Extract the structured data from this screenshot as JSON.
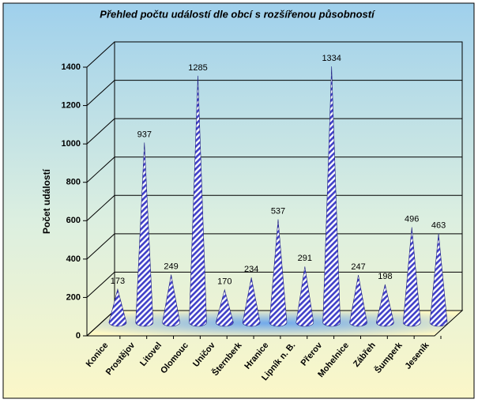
{
  "chart_data": {
    "type": "cone",
    "title": "Přehled počtu událostí dle obcí s rozšířenou působností",
    "y_label": "Počet událostí",
    "categories": [
      "Konice",
      "Prostějov",
      "Litovel",
      "Olomouc",
      "Uničov",
      "Šternberk",
      "Hranice",
      "Lipník n. B.",
      "Přerov",
      "Mohelnice",
      "Zábřeh",
      "Šumperk",
      "Jeseník"
    ],
    "values": [
      173,
      937,
      249,
      1285,
      170,
      234,
      537,
      291,
      1334,
      247,
      198,
      496,
      463
    ],
    "ylim": [
      0,
      1400
    ],
    "yticks": [
      0,
      200,
      400,
      600,
      800,
      1000,
      1200,
      1400
    ],
    "grid": true
  }
}
